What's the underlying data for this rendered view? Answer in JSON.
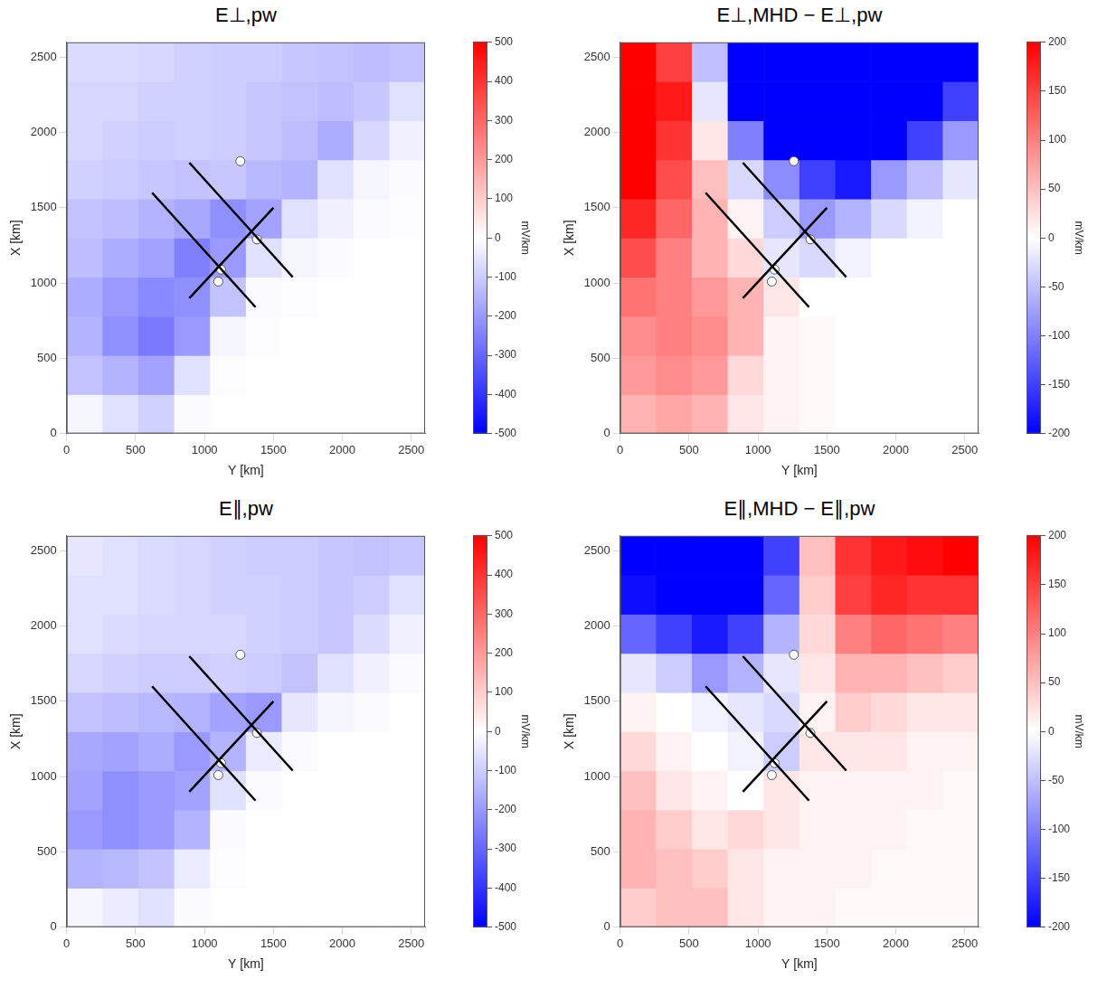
{
  "chart_data": [
    {
      "type": "heatmap",
      "title": "E⊥,pw",
      "x_label": "Y [km]",
      "y_label": "X [km]",
      "xlim": [
        0,
        2600
      ],
      "ylim": [
        0,
        2600
      ],
      "xticks": [
        0,
        500,
        1000,
        1500,
        2000,
        2500
      ],
      "yticks": [
        0,
        500,
        1000,
        1500,
        2000,
        2500
      ],
      "grid": true,
      "x_edges": [
        0,
        260,
        520,
        780,
        1040,
        1300,
        1560,
        1820,
        2080,
        2340,
        2600
      ],
      "y_edges": [
        0,
        260,
        520,
        780,
        1040,
        1300,
        1560,
        1820,
        2080,
        2340,
        2600
      ],
      "cells": [
        [
          -20,
          -60,
          -90,
          -10,
          0,
          0,
          0,
          0,
          0,
          0
        ],
        [
          -120,
          -150,
          -180,
          -60,
          -5,
          0,
          0,
          0,
          0,
          0
        ],
        [
          -150,
          -220,
          -260,
          -200,
          -20,
          -5,
          0,
          0,
          0,
          0
        ],
        [
          -160,
          -200,
          -230,
          -220,
          -120,
          -10,
          -5,
          0,
          0,
          0
        ],
        [
          -130,
          -160,
          -180,
          -250,
          -200,
          -60,
          -20,
          -10,
          0,
          0
        ],
        [
          -120,
          -130,
          -150,
          -170,
          -220,
          -180,
          -60,
          -30,
          -10,
          -5
        ],
        [
          -90,
          -100,
          -110,
          -120,
          -110,
          -140,
          -150,
          -60,
          -20,
          -10
        ],
        [
          -80,
          -90,
          -100,
          -90,
          -100,
          -110,
          -130,
          -160,
          -80,
          -30
        ],
        [
          -80,
          -80,
          -90,
          -90,
          -100,
          -110,
          -120,
          -130,
          -110,
          -60
        ],
        [
          -70,
          -70,
          -80,
          -90,
          -100,
          -100,
          -110,
          -120,
          -130,
          -120
        ]
      ],
      "colorbar": {
        "label": "mV/km",
        "lim": [
          -500,
          500
        ],
        "ticks": [
          -500,
          -400,
          -300,
          -200,
          -100,
          0,
          100,
          200,
          300,
          400,
          500
        ]
      },
      "transects": [
        {
          "x": [
            620,
            1370
          ],
          "y": [
            1600,
            840
          ]
        },
        {
          "x": [
            890,
            1640
          ],
          "y": [
            1800,
            1040
          ]
        },
        {
          "x": [
            890,
            1500
          ],
          "y": [
            900,
            1500
          ]
        }
      ],
      "sites": {
        "x": [
          1260,
          1120,
          1100,
          1380
        ],
        "y": [
          1810,
          1090,
          1010,
          1290
        ]
      }
    },
    {
      "type": "heatmap",
      "title": "E⊥,MHD − E⊥,pw",
      "x_label": "Y [km]",
      "y_label": "X [km]",
      "xlim": [
        0,
        2600
      ],
      "ylim": [
        0,
        2600
      ],
      "xticks": [
        0,
        500,
        1000,
        1500,
        2000,
        2500
      ],
      "yticks": [
        0,
        500,
        1000,
        1500,
        2000,
        2500
      ],
      "grid": true,
      "x_edges": [
        0,
        260,
        520,
        780,
        1040,
        1300,
        1560,
        1820,
        2080,
        2340,
        2600
      ],
      "y_edges": [
        0,
        260,
        520,
        780,
        1040,
        1300,
        1560,
        1820,
        2080,
        2340,
        2600
      ],
      "cells": [
        [
          60,
          70,
          60,
          20,
          10,
          5,
          0,
          0,
          0,
          0
        ],
        [
          80,
          90,
          80,
          30,
          10,
          5,
          0,
          0,
          0,
          0
        ],
        [
          90,
          100,
          90,
          60,
          10,
          5,
          0,
          0,
          0,
          0
        ],
        [
          110,
          100,
          80,
          60,
          20,
          0,
          0,
          0,
          0,
          0
        ],
        [
          140,
          100,
          60,
          30,
          -20,
          -30,
          -10,
          0,
          0,
          0
        ],
        [
          170,
          120,
          60,
          10,
          -40,
          -80,
          -60,
          -30,
          -10,
          0
        ],
        [
          200,
          140,
          50,
          -30,
          -90,
          -150,
          -180,
          -80,
          -50,
          -20
        ],
        [
          200,
          160,
          20,
          -100,
          -200,
          -200,
          -200,
          -200,
          -150,
          -80
        ],
        [
          200,
          180,
          -20,
          -200,
          -200,
          -200,
          -200,
          -200,
          -200,
          -150
        ],
        [
          200,
          150,
          -50,
          -200,
          -200,
          -200,
          -200,
          -200,
          -200,
          -200
        ]
      ],
      "colorbar": {
        "label": "mV/km",
        "lim": [
          -200,
          200
        ],
        "ticks": [
          -200,
          -150,
          -100,
          -50,
          0,
          50,
          100,
          150,
          200
        ]
      },
      "transects": [
        {
          "x": [
            620,
            1370
          ],
          "y": [
            1600,
            840
          ]
        },
        {
          "x": [
            890,
            1640
          ],
          "y": [
            1800,
            1040
          ]
        },
        {
          "x": [
            890,
            1500
          ],
          "y": [
            900,
            1500
          ]
        }
      ],
      "sites": {
        "x": [
          1260,
          1120,
          1100,
          1380
        ],
        "y": [
          1810,
          1090,
          1010,
          1290
        ]
      }
    },
    {
      "type": "heatmap",
      "title": "E∥,pw",
      "x_label": "Y [km]",
      "y_label": "X [km]",
      "xlim": [
        0,
        2600
      ],
      "ylim": [
        0,
        2600
      ],
      "xticks": [
        0,
        500,
        1000,
        1500,
        2000,
        2500
      ],
      "yticks": [
        0,
        500,
        1000,
        1500,
        2000,
        2500
      ],
      "grid": true,
      "x_edges": [
        0,
        260,
        520,
        780,
        1040,
        1300,
        1560,
        1820,
        2080,
        2340,
        2600
      ],
      "y_edges": [
        0,
        260,
        520,
        780,
        1040,
        1300,
        1560,
        1820,
        2080,
        2340,
        2600
      ],
      "cells": [
        [
          -20,
          -40,
          -60,
          -10,
          0,
          0,
          0,
          0,
          0,
          0
        ],
        [
          -150,
          -140,
          -120,
          -40,
          -5,
          0,
          0,
          0,
          0,
          0
        ],
        [
          -200,
          -220,
          -200,
          -150,
          -10,
          0,
          0,
          0,
          0,
          0
        ],
        [
          -180,
          -220,
          -200,
          -180,
          -60,
          -10,
          0,
          0,
          0,
          0
        ],
        [
          -170,
          -180,
          -160,
          -200,
          -150,
          -40,
          -10,
          0,
          0,
          0
        ],
        [
          -120,
          -130,
          -140,
          -150,
          -180,
          -200,
          -50,
          -20,
          -10,
          0
        ],
        [
          -80,
          -90,
          -100,
          -100,
          -90,
          -100,
          -120,
          -60,
          -30,
          -10
        ],
        [
          -60,
          -70,
          -80,
          -80,
          -80,
          -90,
          -100,
          -110,
          -70,
          -30
        ],
        [
          -60,
          -60,
          -70,
          -80,
          -90,
          -90,
          -100,
          -110,
          -100,
          -60
        ],
        [
          -50,
          -60,
          -70,
          -80,
          -90,
          -100,
          -100,
          -110,
          -120,
          -110
        ]
      ],
      "colorbar": {
        "label": "mV/km",
        "lim": [
          -500,
          500
        ],
        "ticks": [
          -500,
          -400,
          -300,
          -200,
          -100,
          0,
          100,
          200,
          300,
          400,
          500
        ]
      },
      "transects": [
        {
          "x": [
            620,
            1370
          ],
          "y": [
            1600,
            840
          ]
        },
        {
          "x": [
            890,
            1640
          ],
          "y": [
            1800,
            1040
          ]
        },
        {
          "x": [
            890,
            1500
          ],
          "y": [
            900,
            1500
          ]
        }
      ],
      "sites": {
        "x": [
          1260,
          1120,
          1100,
          1380
        ],
        "y": [
          1810,
          1090,
          1010,
          1290
        ]
      }
    },
    {
      "type": "heatmap",
      "title": "E∥,MHD − E∥,pw",
      "x_label": "Y [km]",
      "y_label": "X [km]",
      "xlim": [
        0,
        2600
      ],
      "ylim": [
        0,
        2600
      ],
      "xticks": [
        0,
        500,
        1000,
        1500,
        2000,
        2500
      ],
      "yticks": [
        0,
        500,
        1000,
        1500,
        2000,
        2500
      ],
      "grid": true,
      "x_edges": [
        0,
        260,
        520,
        780,
        1040,
        1300,
        1560,
        1820,
        2080,
        2340,
        2600
      ],
      "y_edges": [
        0,
        260,
        520,
        780,
        1040,
        1300,
        1560,
        1820,
        2080,
        2340,
        2600
      ],
      "cells": [
        [
          40,
          50,
          50,
          20,
          10,
          10,
          5,
          5,
          5,
          5
        ],
        [
          60,
          50,
          40,
          20,
          10,
          10,
          10,
          5,
          5,
          5
        ],
        [
          60,
          40,
          20,
          30,
          20,
          10,
          10,
          10,
          5,
          5
        ],
        [
          50,
          20,
          10,
          0,
          20,
          10,
          10,
          10,
          10,
          5
        ],
        [
          30,
          10,
          0,
          -10,
          -40,
          20,
          20,
          20,
          10,
          10
        ],
        [
          10,
          0,
          -10,
          -20,
          -30,
          10,
          40,
          30,
          20,
          20
        ],
        [
          -20,
          -40,
          -80,
          -60,
          -20,
          20,
          60,
          60,
          50,
          40
        ],
        [
          -120,
          -150,
          -180,
          -150,
          -60,
          30,
          100,
          120,
          110,
          100
        ],
        [
          -190,
          -200,
          -200,
          -200,
          -120,
          40,
          150,
          170,
          160,
          160
        ],
        [
          -200,
          -200,
          -200,
          -200,
          -150,
          50,
          160,
          180,
          190,
          200
        ]
      ],
      "colorbar": {
        "label": "mV/km",
        "lim": [
          -200,
          200
        ],
        "ticks": [
          -200,
          -150,
          -100,
          -50,
          0,
          50,
          100,
          150,
          200
        ]
      },
      "transects": [
        {
          "x": [
            620,
            1370
          ],
          "y": [
            1600,
            840
          ]
        },
        {
          "x": [
            890,
            1640
          ],
          "y": [
            1800,
            1040
          ]
        },
        {
          "x": [
            890,
            1500
          ],
          "y": [
            900,
            1500
          ]
        }
      ],
      "sites": {
        "x": [
          1260,
          1120,
          1100,
          1380
        ],
        "y": [
          1810,
          1090,
          1010,
          1290
        ]
      }
    }
  ]
}
